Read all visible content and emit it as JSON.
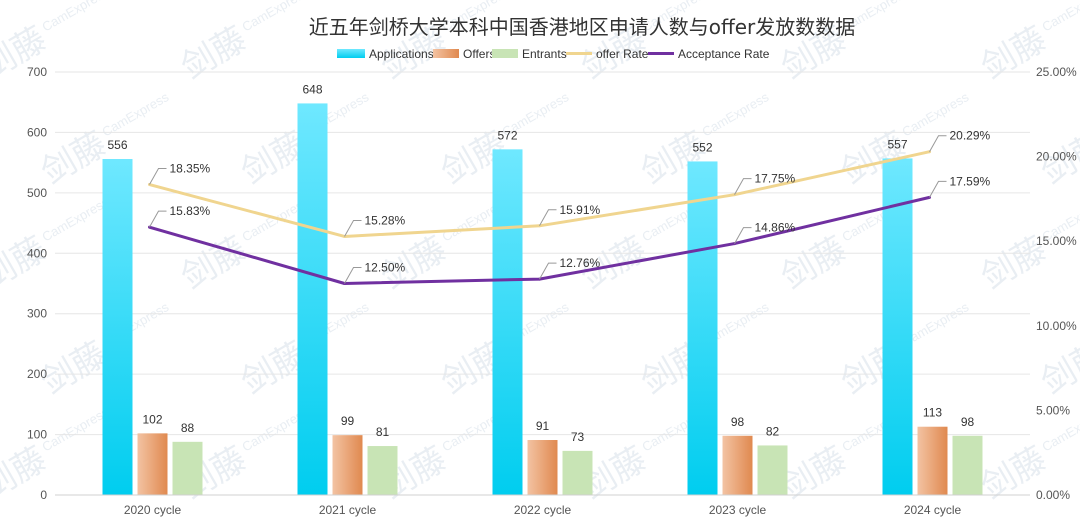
{
  "watermark": {
    "main": "剑藤",
    "sub": "CamExpress"
  },
  "chart_data": {
    "type": "bar",
    "title": "近五年剑桥大学本科中国香港地区申请人数与offer发放数数据",
    "categories": [
      "2020 cycle",
      "2021 cycle",
      "2022 cycle",
      "2023 cycle",
      "2024 cycle"
    ],
    "series": [
      {
        "name": "Applications",
        "kind": "bar",
        "axis": "left",
        "values": [
          556,
          648,
          572,
          552,
          557
        ]
      },
      {
        "name": "Offers",
        "kind": "bar",
        "axis": "left",
        "values": [
          102,
          99,
          91,
          98,
          113
        ]
      },
      {
        "name": "Entrants",
        "kind": "bar",
        "axis": "left",
        "values": [
          88,
          81,
          73,
          82,
          98
        ]
      },
      {
        "name": "offer Rate",
        "kind": "line",
        "axis": "right",
        "values": [
          18.35,
          15.28,
          15.91,
          17.75,
          20.29
        ],
        "labels": [
          "18.35%",
          "15.28%",
          "15.91%",
          "17.75%",
          "20.29%"
        ]
      },
      {
        "name": "Acceptance Rate",
        "kind": "line",
        "axis": "right",
        "values": [
          15.83,
          12.5,
          12.76,
          14.86,
          17.59
        ],
        "labels": [
          "15.83%",
          "12.50%",
          "12.76%",
          "14.86%",
          "17.59%"
        ]
      }
    ],
    "y_left": {
      "min": 0,
      "max": 700,
      "ticks": [
        "0",
        "100",
        "200",
        "300",
        "400",
        "500",
        "600",
        "700"
      ]
    },
    "y_right": {
      "min": 0,
      "max": 25,
      "ticks": [
        "0.00%",
        "5.00%",
        "10.00%",
        "15.00%",
        "20.00%",
        "25.00%"
      ]
    },
    "legend_position": "top-center",
    "colors": {
      "applications_top": "#6fe8ff",
      "applications_bottom": "#00cdef",
      "offers_light": "#f3c3a3",
      "offers_dark": "#e0894f",
      "entrants": "#c8e4b5",
      "offer_rate": "#f0d58f",
      "acceptance_rate": "#7030a0",
      "grid": "#e6e6e6",
      "leader": "#999999"
    }
  }
}
